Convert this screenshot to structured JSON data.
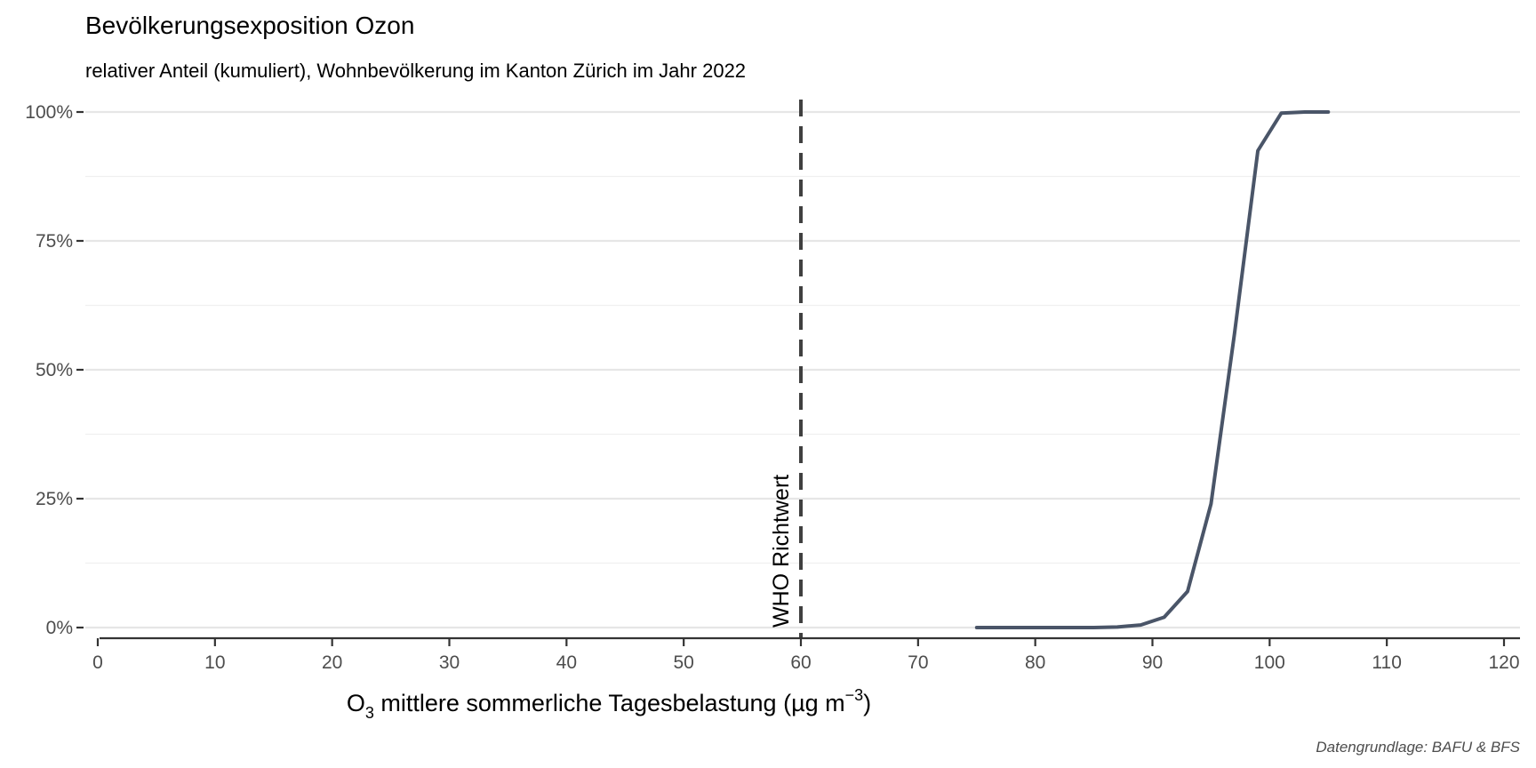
{
  "chart_data": {
    "type": "line",
    "title": "Bevölkerungsexposition Ozon",
    "subtitle": "relativer Anteil (kumuliert), Wohnbevölkerung im Kanton Zürich im Jahr 2022",
    "xlabel": {
      "prefix": "O",
      "subscript": "3",
      "middle": " mittlere sommerliche Tagesbelastung (µg m",
      "superscript": "−3",
      "suffix": ")"
    },
    "ylabel": "",
    "xlim": [
      0,
      120
    ],
    "ylim": [
      0,
      1
    ],
    "x_ticks": [
      0,
      10,
      20,
      30,
      40,
      50,
      60,
      70,
      80,
      90,
      100,
      110,
      120
    ],
    "x_tick_labels": [
      "0",
      "10",
      "20",
      "30",
      "40",
      "50",
      "60",
      "70",
      "80",
      "90",
      "100",
      "110",
      "120"
    ],
    "y_ticks": [
      0,
      0.25,
      0.5,
      0.75,
      1.0
    ],
    "y_tick_labels": [
      "0%",
      "25%",
      "50%",
      "75%",
      "100%"
    ],
    "grid": true,
    "series": [
      {
        "color": "#4a5568",
        "x": [
          75,
          77,
          79,
          81,
          83,
          85,
          87,
          89,
          91,
          93,
          95,
          97,
          99,
          101,
          103,
          105
        ],
        "y": [
          0,
          0,
          0,
          0,
          0,
          0,
          0.001,
          0.005,
          0.02,
          0.07,
          0.24,
          0.57,
          0.925,
          0.998,
          1.0,
          1.0
        ]
      }
    ],
    "reference_line": {
      "x": 60,
      "label": "WHO Richtwert",
      "style": "dashed",
      "color": "#404040"
    },
    "caption": "Datengrundlage: BAFU & BFS"
  }
}
